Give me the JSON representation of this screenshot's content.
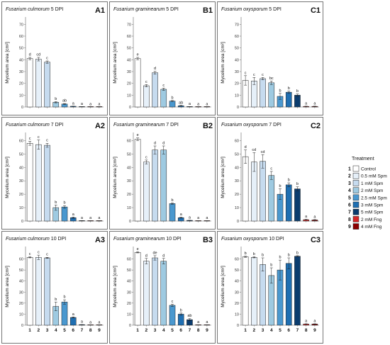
{
  "colors": {
    "treatments": [
      "#ffffff",
      "#e6f0f9",
      "#c6dbef",
      "#9ecae1",
      "#4a98cf",
      "#1f6fb2",
      "#0b3c6e",
      "#d62728",
      "#8b0000"
    ]
  },
  "legend": {
    "title": "Treatment",
    "items": [
      {
        "num": "1",
        "label": "Control"
      },
      {
        "num": "2",
        "label": "0.5 mM Spm"
      },
      {
        "num": "3",
        "label": "1 mM Spm"
      },
      {
        "num": "4",
        "label": "2 mM Spm"
      },
      {
        "num": "5",
        "label": "2.5 mM Spm"
      },
      {
        "num": "6",
        "label": "3 mM Spm"
      },
      {
        "num": "7",
        "label": "5 mM Spm"
      },
      {
        "num": "8",
        "label": "2 mM Fng"
      },
      {
        "num": "9",
        "label": "4 mM Fng"
      }
    ]
  },
  "chart_data": [
    {
      "id": "A1",
      "type": "bar",
      "species": "Fusarium culmorum",
      "dpi": "5 DPI",
      "ylabel": "Mycelium area [cm²]",
      "ylim": [
        0,
        75
      ],
      "yticks": [
        0,
        10,
        20,
        30,
        40,
        50,
        60,
        70
      ],
      "categories": [
        "1",
        "2",
        "3",
        "4",
        "5",
        "6",
        "7",
        "8",
        "9"
      ],
      "values": [
        41,
        40.5,
        38,
        4,
        2.5,
        0.6,
        0.2,
        0.1,
        0.1
      ],
      "errors": [
        1,
        1.5,
        1,
        0.5,
        0.4,
        0.1,
        0.05,
        0.05,
        0.05
      ],
      "letters": [
        "d",
        "cd",
        "c",
        "b",
        "ab",
        "a",
        "a",
        "a",
        "a"
      ]
    },
    {
      "id": "B1",
      "type": "bar",
      "species": "Fusarium graminearum",
      "dpi": "5 DPI",
      "ylabel": "Mycelium area [cm²]",
      "ylim": [
        0,
        75
      ],
      "yticks": [
        0,
        10,
        20,
        30,
        40,
        50,
        60,
        70
      ],
      "categories": [
        "1",
        "2",
        "3",
        "4",
        "5",
        "6",
        "7",
        "8",
        "9"
      ],
      "values": [
        41,
        18,
        29,
        15,
        5,
        1,
        0.2,
        0.1,
        0.1
      ],
      "errors": [
        1,
        1,
        1.2,
        1,
        0.5,
        0.3,
        0.05,
        0.05,
        0.05
      ],
      "letters": [
        "e",
        "c",
        "d",
        "c",
        "b",
        "ab",
        "a",
        "a",
        "a"
      ]
    },
    {
      "id": "C1",
      "type": "bar",
      "species": "Fusarium oxysporum",
      "dpi": "5 DPI",
      "ylabel": "Mycelium area [cm²]",
      "ylim": [
        0,
        75
      ],
      "yticks": [
        0,
        10,
        20,
        30,
        40,
        50,
        60,
        70
      ],
      "categories": [
        "1",
        "2",
        "3",
        "4",
        "5",
        "6",
        "7",
        "8",
        "9"
      ],
      "values": [
        22.5,
        22,
        24,
        20.5,
        9,
        12.5,
        10,
        0.5,
        0.5
      ],
      "errors": [
        4,
        3,
        1,
        1.5,
        2.5,
        1,
        1,
        0.2,
        0.2
      ],
      "letters": [
        "c",
        "c",
        "c",
        "bc",
        "b",
        "b",
        "b",
        "a",
        "a"
      ]
    },
    {
      "id": "A2",
      "type": "bar",
      "species": "Fusarium culmorum",
      "dpi": "7 DPI",
      "ylabel": "Mycelium area [cm²]",
      "ylim": [
        0,
        65
      ],
      "yticks": [
        0,
        10,
        20,
        30,
        40,
        50,
        60
      ],
      "categories": [
        "1",
        "2",
        "3",
        "4",
        "5",
        "6",
        "7",
        "8",
        "9"
      ],
      "values": [
        58,
        57,
        56.5,
        10,
        10.5,
        2.5,
        0.3,
        0.1,
        0.1
      ],
      "errors": [
        1.5,
        3.5,
        1.5,
        2,
        1,
        0.5,
        0.05,
        0.05,
        0.05
      ],
      "letters": [
        "c",
        "c",
        "c",
        "b",
        "b",
        "a",
        "a",
        "a",
        "a"
      ]
    },
    {
      "id": "B2",
      "type": "bar",
      "species": "Fusarium graminearum",
      "dpi": "7 DPI",
      "ylabel": "Mycelium area [cm²]",
      "ylim": [
        0,
        65
      ],
      "yticks": [
        0,
        10,
        20,
        30,
        40,
        50,
        60
      ],
      "categories": [
        "1",
        "2",
        "3",
        "4",
        "5",
        "6",
        "7",
        "8",
        "9"
      ],
      "values": [
        61,
        44,
        53,
        53,
        13,
        2.5,
        0.5,
        0.1,
        0.1
      ],
      "errors": [
        1,
        1.5,
        3,
        3,
        0.5,
        0.3,
        0.1,
        0.05,
        0.05
      ],
      "letters": [
        "e",
        "c",
        "d",
        "d",
        "b",
        "a",
        "a",
        "a",
        "a"
      ]
    },
    {
      "id": "C2",
      "type": "bar",
      "species": "Fusarium oxysporum",
      "dpi": "7 DPI",
      "ylabel": "Mycelium area [cm²]",
      "ylim": [
        0,
        65
      ],
      "yticks": [
        0,
        10,
        20,
        30,
        40,
        50,
        60
      ],
      "categories": [
        "1",
        "2",
        "3",
        "4",
        "5",
        "6",
        "7",
        "8",
        "9"
      ],
      "values": [
        48,
        44,
        44.5,
        34,
        20,
        27,
        24,
        1,
        0.8
      ],
      "errors": [
        5,
        7,
        5,
        3,
        4,
        1.5,
        1.5,
        0.3,
        0.3
      ],
      "letters": [
        "d",
        "cd",
        "cd",
        "c",
        "b",
        "b",
        "b",
        "a",
        "a"
      ]
    },
    {
      "id": "A3",
      "type": "bar",
      "species": "Fusarium culmorum",
      "dpi": "10 DPI",
      "ylabel": "Mycelium area [cm²]",
      "ylim": [
        0,
        70
      ],
      "yticks": [
        0,
        10,
        20,
        30,
        40,
        50,
        60
      ],
      "categories": [
        "1",
        "2",
        "3",
        "4",
        "5",
        "6",
        "7",
        "8",
        "9"
      ],
      "values": [
        61.5,
        61.5,
        61,
        17,
        21,
        7,
        0.5,
        0.1,
        0.1
      ],
      "errors": [
        0.5,
        2,
        0.5,
        4,
        2,
        0.5,
        0.1,
        0.05,
        0.05
      ],
      "letters": [
        "c",
        "c",
        "c",
        "b",
        "b",
        "a",
        "a",
        "a",
        "a"
      ]
    },
    {
      "id": "B3",
      "type": "bar",
      "species": "Fusarium graminearum",
      "dpi": "10 DPI",
      "ylabel": "Mycelium area [cm²]",
      "ylim": [
        0,
        70
      ],
      "yticks": [
        0,
        10,
        20,
        30,
        40,
        50,
        60
      ],
      "categories": [
        "1",
        "2",
        "3",
        "4",
        "5",
        "6",
        "7",
        "8",
        "9"
      ],
      "values": [
        66,
        58,
        61,
        58,
        18,
        10,
        5,
        0.2,
        0.2
      ],
      "errors": [
        0.5,
        2.5,
        2,
        2.5,
        1,
        1,
        1,
        0.05,
        0.05
      ],
      "letters": [
        "e",
        "d",
        "de",
        "d",
        "c",
        "b",
        "ab",
        "a",
        "a"
      ]
    },
    {
      "id": "C3",
      "type": "bar",
      "species": "Fusarium oxysporum",
      "dpi": "10 DPI",
      "ylabel": "Mycelium area [cm²]",
      "ylim": [
        0,
        70
      ],
      "yticks": [
        0,
        10,
        20,
        30,
        40,
        50,
        60
      ],
      "categories": [
        "1",
        "2",
        "3",
        "4",
        "5",
        "6",
        "7",
        "8",
        "9"
      ],
      "values": [
        62,
        61.5,
        55,
        45,
        50,
        56,
        62.5,
        1,
        1
      ],
      "errors": [
        0.5,
        0.5,
        6,
        7,
        9,
        5,
        0.5,
        0.3,
        0.3
      ],
      "letters": [
        "b",
        "b",
        "b",
        "b",
        "b",
        "b",
        "b",
        "a",
        "a"
      ]
    }
  ]
}
